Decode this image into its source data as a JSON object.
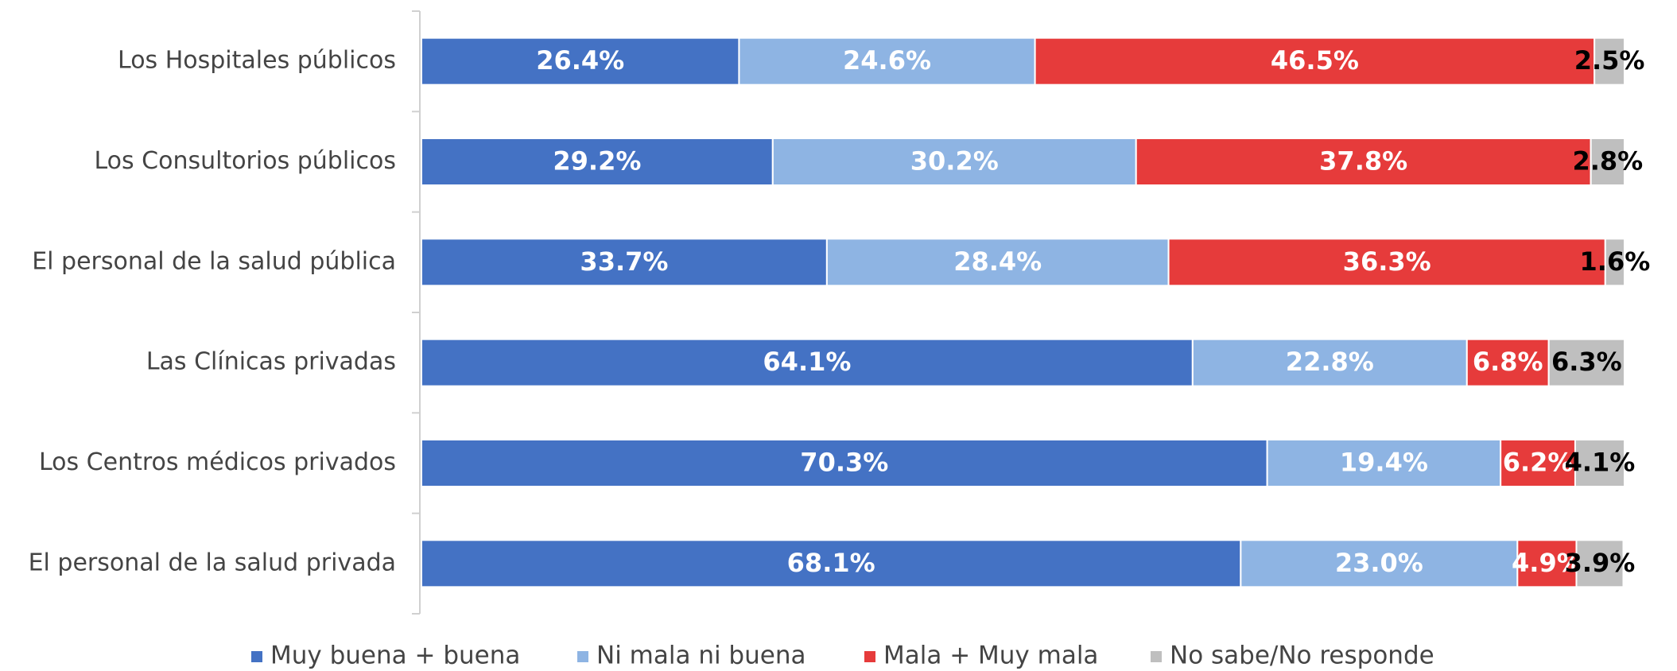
{
  "chart_data": {
    "type": "stacked-bar-horizontal",
    "categories": [
      "Los Hospitales públicos",
      "Los Consultorios públicos",
      "El personal de la salud pública",
      "Las Clínicas privadas",
      "Los Centros médicos privados",
      "El personal de la salud privada"
    ],
    "series": [
      {
        "name": "Muy buena + buena",
        "color": "#4472c4",
        "label_color": "#ffffff",
        "values": [
          26.4,
          29.2,
          33.7,
          64.1,
          70.3,
          68.1
        ],
        "value_labels": [
          "26.4%",
          "29.2%",
          "33.7%",
          "64.1%",
          "70.3%",
          "68.1%"
        ]
      },
      {
        "name": "Ni mala ni buena",
        "color": "#8eb4e3",
        "label_color": "#ffffff",
        "values": [
          24.6,
          30.2,
          28.4,
          22.8,
          19.4,
          23.0
        ],
        "value_labels": [
          "24.6%",
          "30.2%",
          "28.4%",
          "22.8%",
          "19.4%",
          "23.0%"
        ]
      },
      {
        "name": "Mala + Muy mala",
        "color": "#e63b3b",
        "label_color": "#ffffff",
        "values": [
          46.5,
          37.8,
          36.3,
          6.8,
          6.2,
          4.9
        ],
        "value_labels": [
          "46.5%",
          "37.8%",
          "36.3%",
          "6.8%",
          "6.2%",
          "4.9%"
        ]
      },
      {
        "name": "No sabe/No responde",
        "color": "#bfbfbf",
        "label_color": "#000000",
        "values": [
          2.5,
          2.8,
          1.6,
          6.3,
          4.1,
          3.9
        ],
        "value_labels": [
          "2.5%",
          "2.8%",
          "1.6%",
          "6.3%",
          "4.1%",
          "3.9%"
        ]
      }
    ],
    "legend": "bottom"
  }
}
